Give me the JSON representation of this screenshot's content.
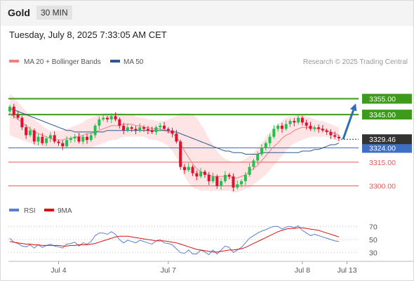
{
  "header": {
    "instrument": "Gold",
    "timeframe": "30 MIN"
  },
  "datetime": "Tuesday, July 8, 2025 7:33:05 AM CET",
  "copyright": "Research © 2025 Trading Central",
  "colors": {
    "up": "#22c14e",
    "down": "#e0102f",
    "ma20": "#f08080",
    "ma50": "#2b5a8f",
    "bollinger": "#ffd9dc",
    "resistance": "#3e9a1a",
    "support": "#3f6fc4",
    "level_red": "#e35a5a",
    "rsi": "#5a7fd0",
    "rsi_ma": "#e01010",
    "arrow": "#2f6db5"
  },
  "chart_data": [
    {
      "type": "candlestick",
      "title": "",
      "legend": {
        "position": "top-left",
        "entries": [
          "MA 20 + Bollinger Bands",
          "MA 50"
        ]
      },
      "ylim": [
        3291,
        3361
      ],
      "last_price": 3329.46,
      "levels": [
        {
          "value": 3355.0,
          "label": "3355.00",
          "kind": "resistance"
        },
        {
          "value": 3345.0,
          "label": "3345.00",
          "kind": "resistance"
        },
        {
          "value": 3324.0,
          "label": "3324.00",
          "kind": "support"
        },
        {
          "value": 3315.0,
          "label": "3315.00",
          "kind": "red"
        },
        {
          "value": 3300.0,
          "label": "3300.00",
          "kind": "red"
        }
      ],
      "projection": {
        "from": 3329.5,
        "to": 3352
      },
      "x_ticks": [
        {
          "index": 12,
          "label": "Jul 4"
        },
        {
          "index": 39,
          "label": "Jul 7"
        },
        {
          "index": 72,
          "label": "Jul 8"
        },
        {
          "index": 83,
          "label": "Jul 13"
        }
      ],
      "close": [
        3350,
        3345,
        3343,
        3337,
        3332,
        3335,
        3328,
        3331,
        3327,
        3330,
        3332,
        3328,
        3327,
        3325,
        3329,
        3330,
        3331,
        3328,
        3331,
        3329,
        3332,
        3338,
        3342,
        3343,
        3342,
        3344,
        3342,
        3338,
        3335,
        3337,
        3336,
        3335,
        3337,
        3336,
        3335,
        3334,
        3337,
        3338,
        3336,
        3335,
        3333,
        3328,
        3312,
        3310,
        3312,
        3308,
        3306,
        3309,
        3307,
        3303,
        3306,
        3300,
        3303,
        3307,
        3306,
        3299,
        3301,
        3303,
        3307,
        3312,
        3316,
        3320,
        3324,
        3327,
        3331,
        3336,
        3338,
        3336,
        3339,
        3341,
        3340,
        3343,
        3340,
        3338,
        3336,
        3337,
        3336,
        3335,
        3334,
        3332,
        3331,
        3330
      ],
      "ma20": [
        3345,
        3344,
        3342,
        3340,
        3338,
        3336,
        3334,
        3333,
        3332,
        3331,
        3330,
        3329,
        3329,
        3329,
        3330,
        3330,
        3331,
        3331,
        3332,
        3333,
        3333,
        3334,
        3335,
        3336,
        3337,
        3338,
        3338,
        3338,
        3339,
        3339,
        3339,
        3338,
        3338,
        3337,
        3337,
        3336,
        3336,
        3336,
        3335,
        3334,
        3333,
        3331,
        3327,
        3322,
        3318,
        3314,
        3311,
        3309,
        3308,
        3307,
        3306,
        3306,
        3306,
        3306,
        3306,
        3305,
        3305,
        3306,
        3307,
        3309,
        3311,
        3313,
        3316,
        3319,
        3322,
        3325,
        3327,
        3330,
        3332,
        3333,
        3335,
        3336,
        3337,
        3337,
        3337,
        3336,
        3336,
        3336,
        3335,
        3334,
        3333,
        3332
      ],
      "boll_upper": [
        3358,
        3356,
        3353,
        3350,
        3347,
        3344,
        3342,
        3340,
        3338,
        3336,
        3335,
        3335,
        3335,
        3335,
        3336,
        3337,
        3338,
        3339,
        3340,
        3342,
        3343,
        3344,
        3345,
        3346,
        3346,
        3346,
        3346,
        3346,
        3346,
        3345,
        3345,
        3344,
        3343,
        3343,
        3342,
        3342,
        3341,
        3341,
        3341,
        3342,
        3343,
        3344,
        3346,
        3346,
        3346,
        3345,
        3343,
        3339,
        3335,
        3330,
        3326,
        3322,
        3319,
        3317,
        3316,
        3315,
        3315,
        3316,
        3317,
        3319,
        3321,
        3324,
        3327,
        3331,
        3334,
        3337,
        3339,
        3341,
        3343,
        3344,
        3344,
        3345,
        3345,
        3344,
        3343,
        3342,
        3341,
        3341,
        3340,
        3339,
        3338,
        3337
      ],
      "boll_lower": [
        3332,
        3331,
        3330,
        3329,
        3328,
        3327,
        3326,
        3325,
        3324,
        3324,
        3324,
        3324,
        3324,
        3324,
        3324,
        3324,
        3324,
        3324,
        3324,
        3324,
        3324,
        3325,
        3326,
        3327,
        3328,
        3329,
        3329,
        3330,
        3331,
        3331,
        3331,
        3331,
        3331,
        3331,
        3330,
        3329,
        3329,
        3328,
        3327,
        3325,
        3322,
        3318,
        3312,
        3306,
        3302,
        3299,
        3298,
        3297,
        3297,
        3297,
        3297,
        3297,
        3297,
        3297,
        3297,
        3296,
        3296,
        3297,
        3298,
        3299,
        3301,
        3303,
        3305,
        3307,
        3310,
        3313,
        3316,
        3319,
        3322,
        3325,
        3327,
        3328,
        3329,
        3330,
        3331,
        3331,
        3331,
        3331,
        3331,
        3330,
        3329,
        3328
      ],
      "ma50": [
        3349,
        3348,
        3347,
        3346,
        3345,
        3344,
        3343,
        3342,
        3341,
        3340,
        3339,
        3338,
        3337,
        3336,
        3335,
        3335,
        3334,
        3334,
        3334,
        3334,
        3334,
        3334,
        3334,
        3334,
        3335,
        3335,
        3335,
        3335,
        3335,
        3335,
        3335,
        3335,
        3335,
        3335,
        3335,
        3335,
        3335,
        3335,
        3335,
        3335,
        3334,
        3334,
        3333,
        3332,
        3331,
        3330,
        3329,
        3328,
        3327,
        3326,
        3325,
        3324,
        3323,
        3322,
        3322,
        3321,
        3321,
        3321,
        3320,
        3320,
        3320,
        3320,
        3321,
        3321,
        3321,
        3321,
        3321,
        3321,
        3321,
        3321,
        3321,
        3321,
        3322,
        3322,
        3322,
        3323,
        3323,
        3324,
        3325,
        3326,
        3326,
        3327
      ]
    },
    {
      "type": "line",
      "title": "",
      "legend": {
        "position": "top-left",
        "entries": [
          "RSI",
          "9MA"
        ]
      },
      "ylim": [
        20,
        80
      ],
      "y_ticks": [
        30,
        50,
        70
      ],
      "series": [
        {
          "name": "RSI",
          "values": [
            52,
            46,
            44,
            40,
            39,
            42,
            37,
            42,
            38,
            41,
            43,
            40,
            39,
            37,
            43,
            44,
            46,
            40,
            45,
            43,
            47,
            56,
            60,
            60,
            58,
            62,
            58,
            50,
            45,
            49,
            47,
            45,
            49,
            47,
            45,
            43,
            48,
            50,
            45,
            44,
            42,
            36,
            30,
            29,
            34,
            28,
            28,
            34,
            31,
            27,
            34,
            28,
            34,
            40,
            38,
            30,
            34,
            38,
            45,
            52,
            56,
            60,
            63,
            65,
            68,
            70,
            70,
            66,
            69,
            70,
            68,
            71,
            64,
            60,
            56,
            58,
            56,
            54,
            52,
            50,
            48,
            47
          ]
        },
        {
          "name": "9MA",
          "values": [
            47,
            46,
            45,
            44,
            43,
            43,
            42,
            42,
            41,
            41,
            41,
            41,
            41,
            40,
            40,
            41,
            41,
            42,
            42,
            42,
            43,
            44,
            46,
            48,
            50,
            52,
            54,
            55,
            55,
            55,
            54,
            53,
            52,
            51,
            50,
            49,
            48,
            48,
            48,
            47,
            46,
            45,
            43,
            41,
            39,
            37,
            35,
            34,
            33,
            32,
            31,
            31,
            32,
            33,
            34,
            34,
            35,
            36,
            38,
            41,
            44,
            47,
            50,
            53,
            56,
            59,
            62,
            64,
            66,
            67,
            67,
            68,
            68,
            67,
            66,
            65,
            64,
            62,
            60,
            58,
            56,
            54
          ]
        }
      ]
    }
  ]
}
